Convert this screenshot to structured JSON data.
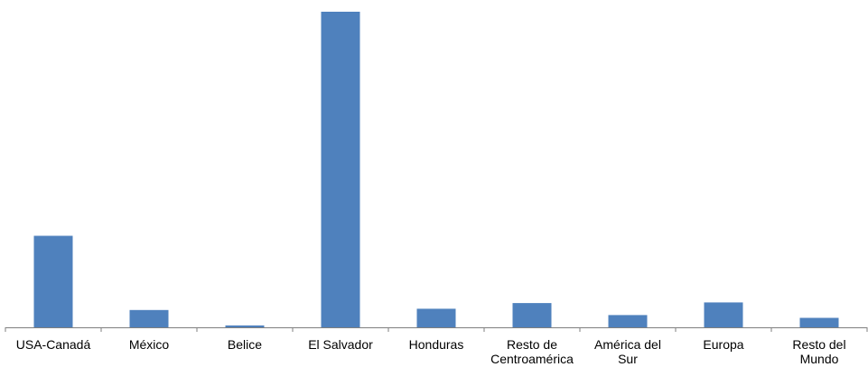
{
  "chart_data": {
    "type": "bar",
    "categories": [
      "USA-Canadá",
      "México",
      "Belice",
      "El Salvador",
      "Honduras",
      "Resto de Centroamérica",
      "América del Sur",
      "Europa",
      "Resto del Mundo"
    ],
    "category_lines": [
      [
        "USA-Canadá"
      ],
      [
        "México"
      ],
      [
        "Belice"
      ],
      [
        "El Salvador"
      ],
      [
        "Honduras"
      ],
      [
        "Resto de",
        "Centroamérica"
      ],
      [
        "América del",
        "Sur"
      ],
      [
        "Europa"
      ],
      [
        "Resto del",
        "Mundo"
      ]
    ],
    "values": [
      29.0,
      5.5,
      0.6,
      100,
      5.9,
      7.7,
      3.9,
      7.9,
      3.0
    ],
    "ylim": [
      0,
      100
    ],
    "bar_color": "#4F81BD",
    "axis_color": "#7F7F7F",
    "grid": false,
    "title": "",
    "xlabel": "",
    "ylabel": ""
  }
}
